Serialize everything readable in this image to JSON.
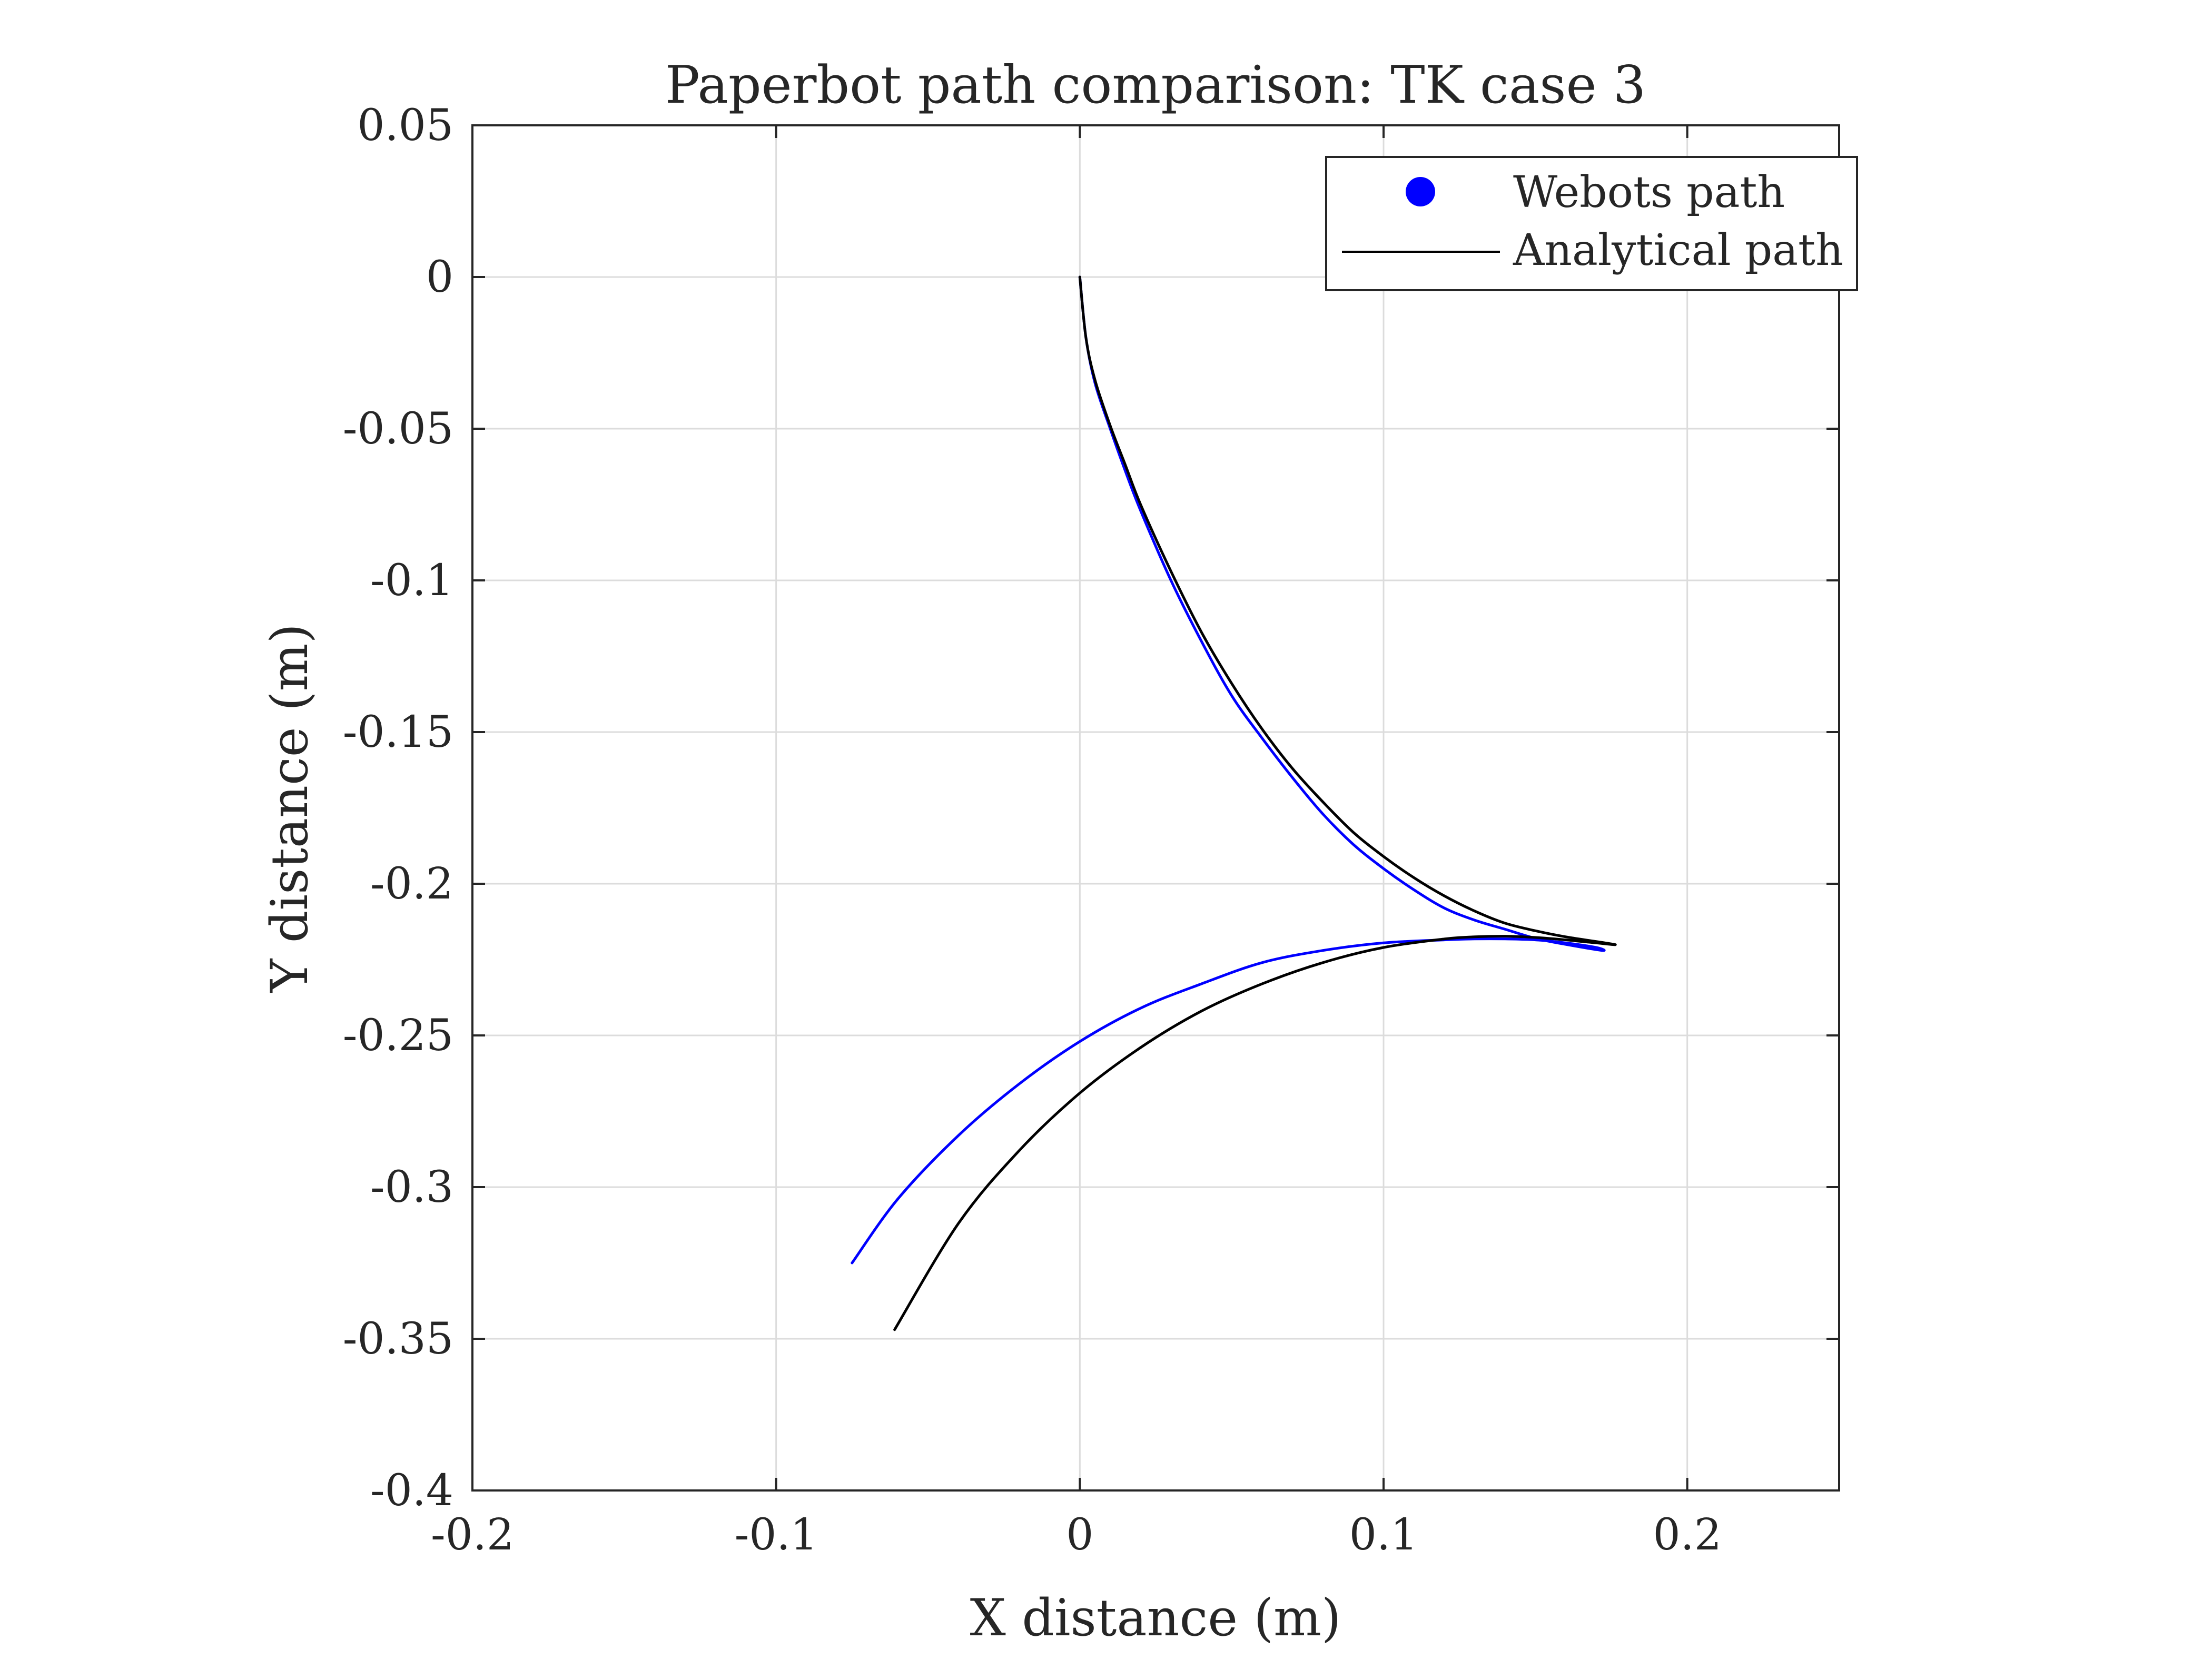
{
  "chart_data": {
    "type": "line",
    "title": "Paperbot path comparison: TK case 3",
    "xlabel": "X distance (m)",
    "ylabel": "Y distance (m)",
    "xlim": [
      -0.2,
      0.25
    ],
    "ylim": [
      -0.4,
      0.05
    ],
    "xticks": [
      -0.2,
      -0.1,
      0,
      0.1,
      0.2
    ],
    "yticks": [
      0.05,
      0,
      -0.05,
      -0.1,
      -0.15,
      -0.2,
      -0.25,
      -0.3,
      -0.35,
      -0.4
    ],
    "xtick_labels": [
      "-0.2",
      "-0.1",
      "0",
      "0.1",
      "0.2"
    ],
    "ytick_labels": [
      "0.05",
      "0",
      "-0.05",
      "-0.1",
      "-0.15",
      "-0.2",
      "-0.25",
      "-0.3",
      "-0.35",
      "-0.4"
    ],
    "grid": true,
    "legend_position": "top-right",
    "series": [
      {
        "name": "Webots path",
        "color": "#0000ff",
        "marker": "circle",
        "x": [
          0,
          0.002,
          0.005,
          0.01,
          0.015,
          0.02,
          0.03,
          0.04,
          0.05,
          0.06,
          0.07,
          0.08,
          0.09,
          0.1,
          0.11,
          0.12,
          0.13,
          0.14,
          0.15,
          0.16,
          0.172,
          0.17,
          0.16,
          0.15,
          0.14,
          0.13,
          0.12,
          0.1,
          0.08,
          0.06,
          0.04,
          0.02,
          0,
          -0.02,
          -0.04,
          -0.06,
          -0.075
        ],
        "y": [
          0,
          -0.02,
          -0.035,
          -0.05,
          -0.064,
          -0.077,
          -0.1,
          -0.12,
          -0.138,
          -0.152,
          -0.165,
          -0.177,
          -0.187,
          -0.195,
          -0.202,
          -0.208,
          -0.212,
          -0.215,
          -0.218,
          -0.22,
          -0.222,
          -0.221,
          -0.2195,
          -0.2185,
          -0.2182,
          -0.2182,
          -0.2185,
          -0.2195,
          -0.222,
          -0.226,
          -0.233,
          -0.241,
          -0.252,
          -0.266,
          -0.283,
          -0.304,
          -0.325
        ]
      },
      {
        "name": "Analytical path",
        "color": "#000000",
        "marker": "none",
        "x": [
          0,
          0.002,
          0.005,
          0.01,
          0.015,
          0.02,
          0.03,
          0.04,
          0.05,
          0.06,
          0.07,
          0.08,
          0.09,
          0.1,
          0.11,
          0.12,
          0.13,
          0.14,
          0.15,
          0.16,
          0.176,
          0.17,
          0.16,
          0.15,
          0.14,
          0.13,
          0.12,
          0.1,
          0.08,
          0.06,
          0.04,
          0.02,
          0,
          -0.02,
          -0.04,
          -0.061
        ],
        "y": [
          0,
          -0.02,
          -0.034,
          -0.049,
          -0.062,
          -0.075,
          -0.097,
          -0.117,
          -0.134,
          -0.149,
          -0.162,
          -0.173,
          -0.183,
          -0.191,
          -0.198,
          -0.204,
          -0.209,
          -0.213,
          -0.2155,
          -0.2175,
          -0.22,
          -0.2195,
          -0.2185,
          -0.2177,
          -0.2173,
          -0.2175,
          -0.2182,
          -0.221,
          -0.226,
          -0.233,
          -0.242,
          -0.254,
          -0.269,
          -0.288,
          -0.312,
          -0.347
        ]
      }
    ]
  }
}
